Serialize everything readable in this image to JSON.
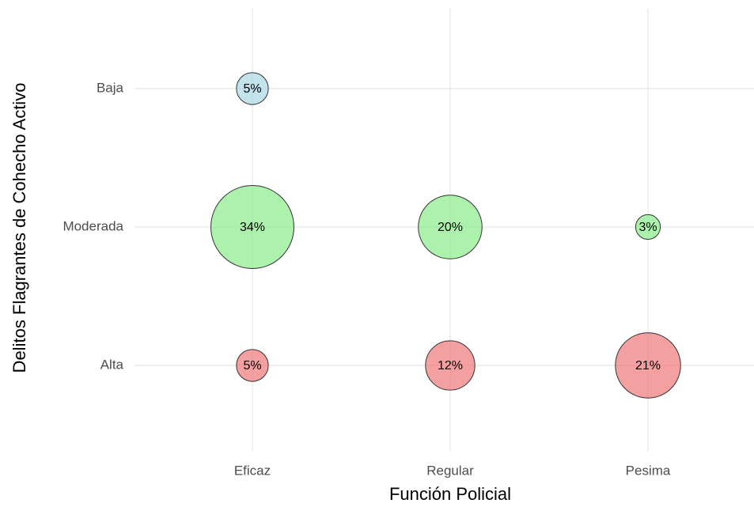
{
  "chart_data": {
    "type": "bubble",
    "xlabel": "Función Policial",
    "ylabel": "Delitos Flagrantes de Cohecho Activo",
    "categories": [
      "Eficaz",
      "Regular",
      "Pesima"
    ],
    "series": [
      {
        "name": "Alta",
        "color": "#f08080",
        "values": [
          5,
          12,
          21
        ],
        "value_labels": [
          "5%",
          "12%",
          "21%"
        ]
      },
      {
        "name": "Moderada",
        "color": "#90ee90",
        "values": [
          34,
          20,
          3
        ],
        "value_labels": [
          "34%",
          "20%",
          "3%"
        ]
      },
      {
        "name": "Baja",
        "color": "#add8e6",
        "values": [
          5,
          null,
          null
        ],
        "value_labels": [
          "5%",
          null,
          null
        ]
      }
    ],
    "grid": true
  }
}
